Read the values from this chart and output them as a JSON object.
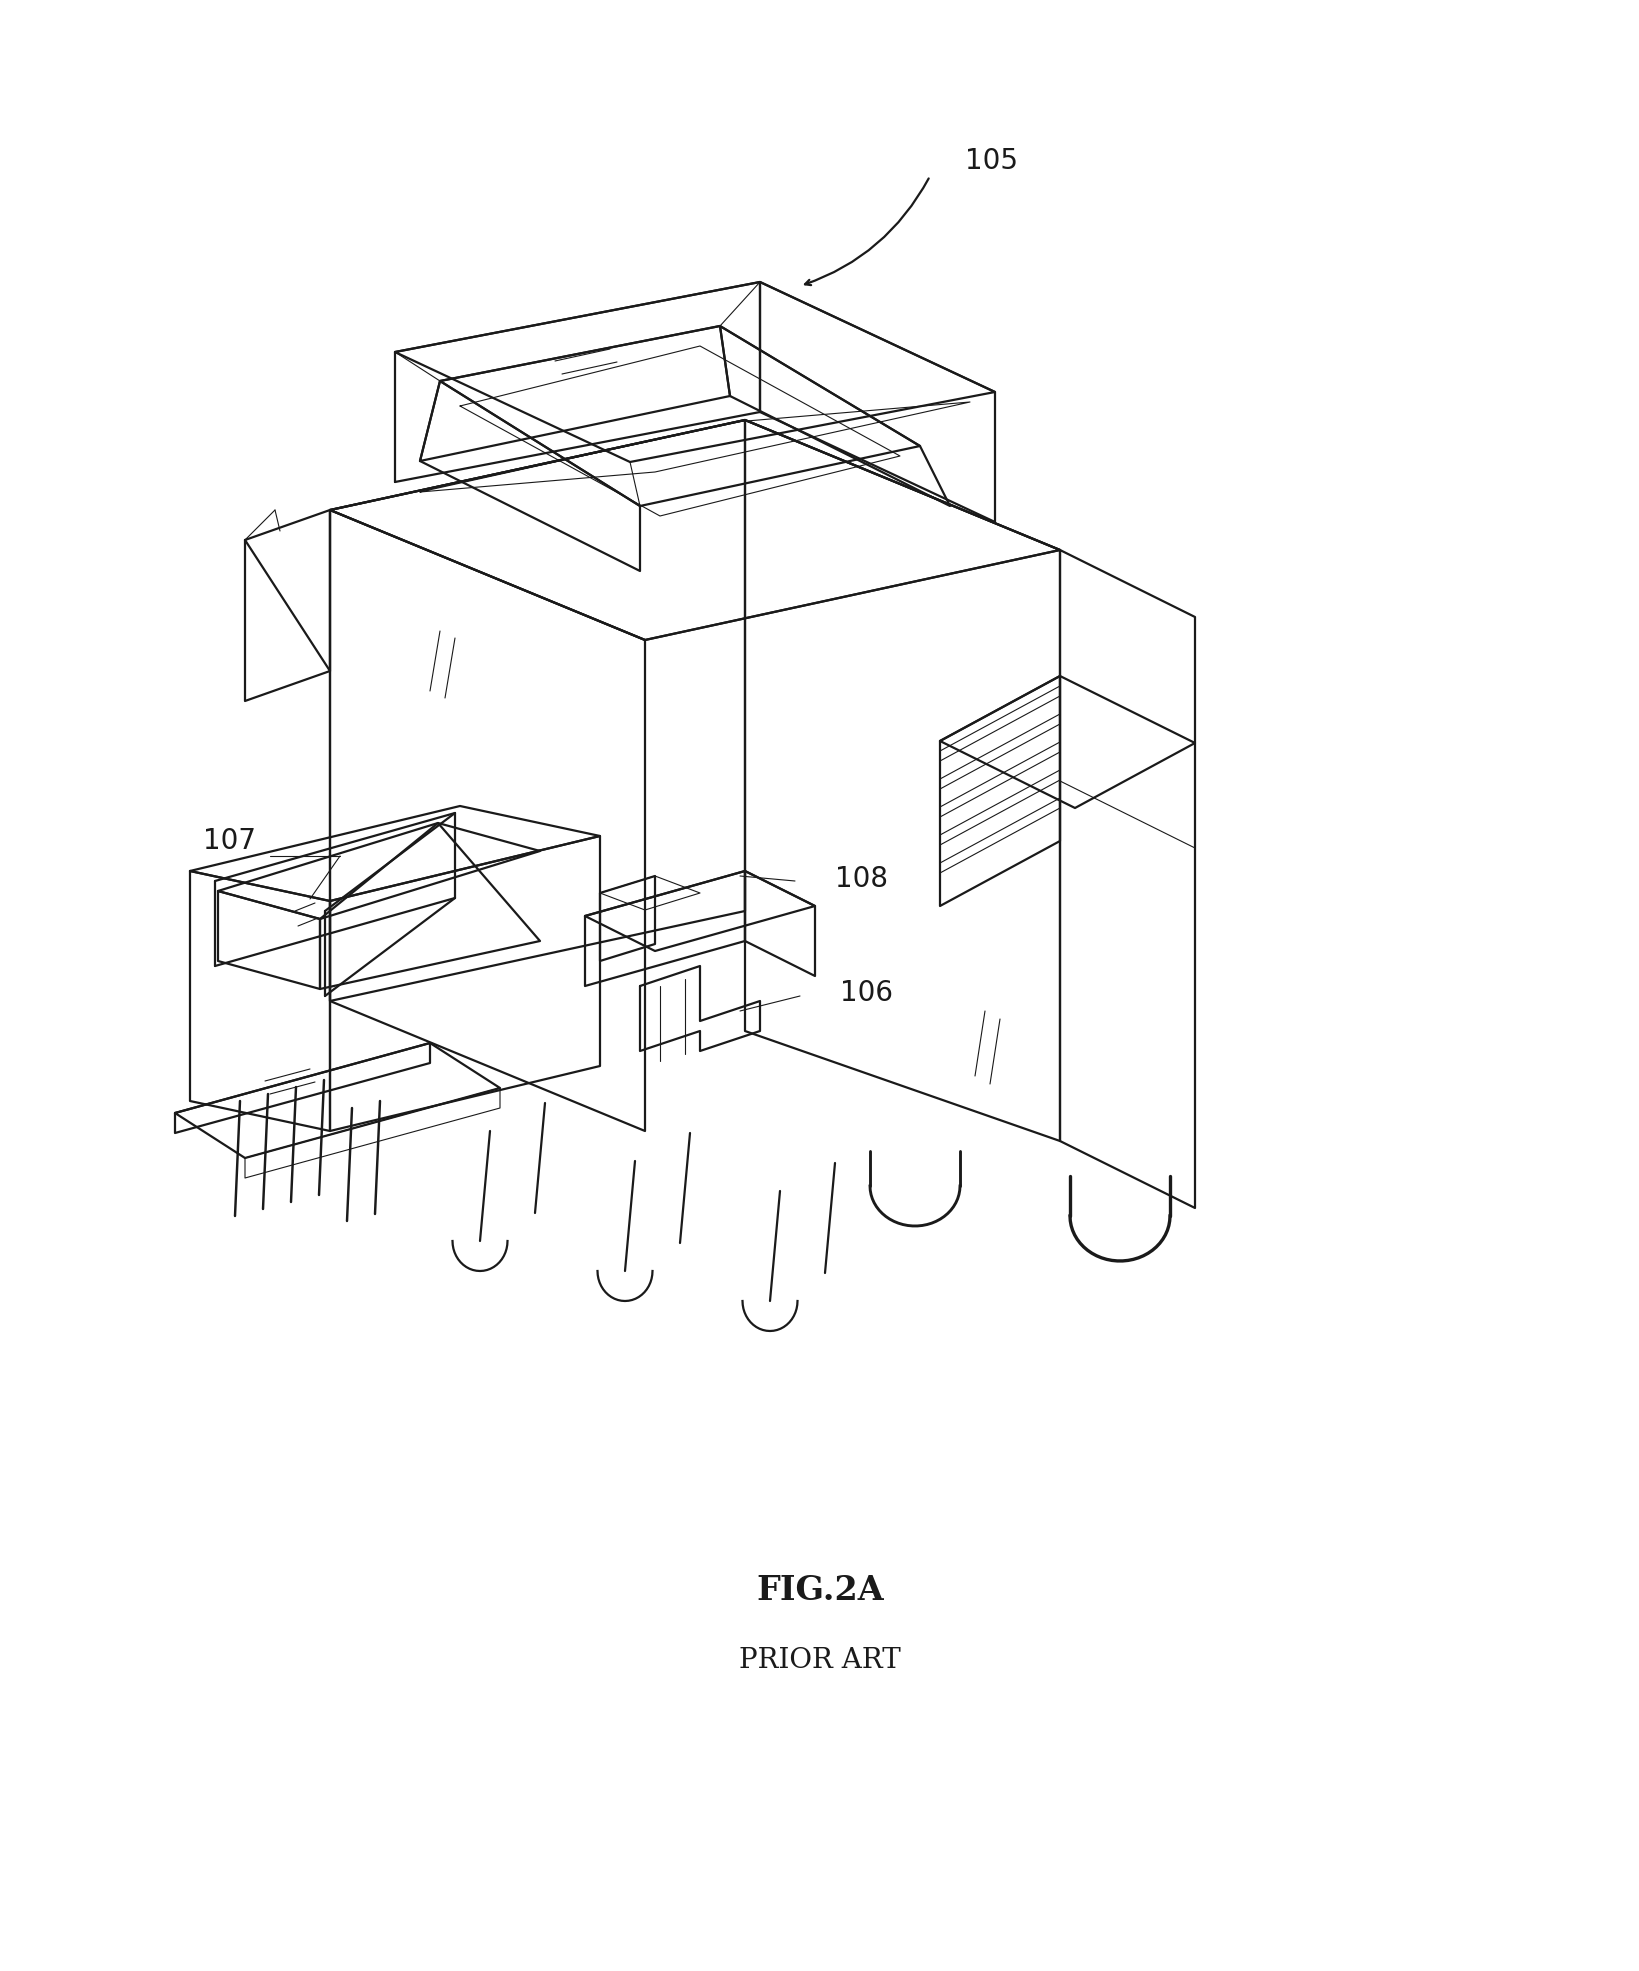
{
  "bg_color": "#ffffff",
  "line_color": "#1a1a1a",
  "lw_main": 1.6,
  "lw_thin": 0.8,
  "fig_title": "FIG.2A",
  "fig_subtitle": "PRIOR ART",
  "label_105": "105",
  "label_107": "107",
  "label_108": "108",
  "label_106": "106",
  "title_fontsize": 24,
  "subtitle_fontsize": 20,
  "label_fontsize": 20,
  "note_fontsize": 10
}
